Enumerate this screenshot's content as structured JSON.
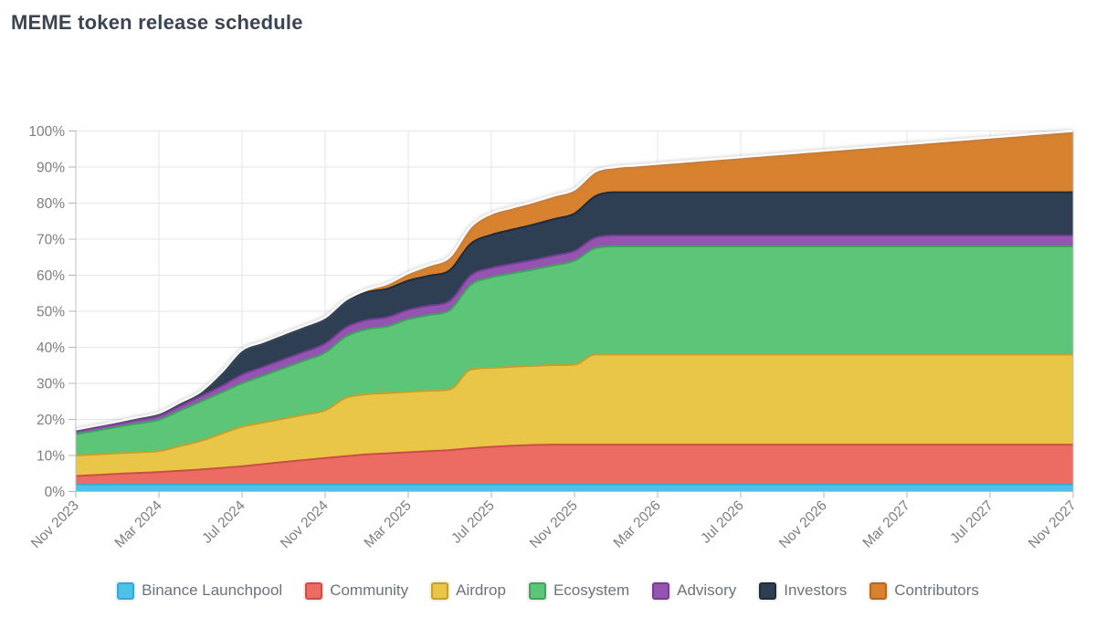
{
  "title": "MEME token release schedule",
  "chart_data": {
    "type": "area",
    "stacked": true,
    "title": "MEME token release schedule",
    "value_unit": "% of total supply unlocked",
    "grid": true,
    "legend_position": "bottom",
    "x_axis": {
      "start": "Nov 2023",
      "end": "Nov 2027",
      "point_interval": "1 month",
      "tick_every_points": 4,
      "tick_labels": [
        "Nov 2023",
        "Mar 2024",
        "Jul 2024",
        "Nov 2024",
        "Mar 2025",
        "Jul 2025",
        "Nov 2025",
        "Mar 2026",
        "Jul 2026",
        "Nov 2026",
        "Mar 2027",
        "Jul 2027",
        "Nov 2027"
      ]
    },
    "y_axis": {
      "min": 0,
      "max": 100,
      "tick_labels": [
        "0%",
        "10%",
        "20%",
        "30%",
        "40%",
        "50%",
        "60%",
        "70%",
        "80%",
        "90%",
        "100%"
      ]
    },
    "series": [
      {
        "name": "Binance Launchpool",
        "color": "#4fc1e9",
        "edge_color": "#36a9d4",
        "values": [
          2,
          2,
          2,
          2,
          2,
          2,
          2,
          2,
          2,
          2,
          2,
          2,
          2,
          2,
          2,
          2,
          2,
          2,
          2,
          2,
          2,
          2,
          2,
          2,
          2,
          2,
          2,
          2,
          2,
          2,
          2,
          2,
          2,
          2,
          2,
          2,
          2,
          2,
          2,
          2,
          2,
          2,
          2,
          2,
          2,
          2,
          2,
          2,
          2
        ]
      },
      {
        "name": "Community",
        "color": "#ec6b63",
        "edge_color": "#c94f47",
        "values": [
          2.3,
          2.6,
          2.9,
          3.15,
          3.4,
          3.75,
          4.1,
          4.55,
          5,
          5.6,
          6.2,
          6.75,
          7.3,
          7.8,
          8.3,
          8.6,
          8.9,
          9.2,
          9.5,
          10,
          10.4,
          10.7,
          10.9,
          11,
          11,
          11,
          11,
          11,
          11,
          11,
          11,
          11,
          11,
          11,
          11,
          11,
          11,
          11,
          11,
          11,
          11,
          11,
          11,
          11,
          11,
          11,
          11,
          11,
          11
        ]
      },
      {
        "name": "Airdrop",
        "color": "#e9c648",
        "edge_color": "#c5a02a",
        "values": [
          5.7,
          5.7,
          5.7,
          5.75,
          5.8,
          6.85,
          7.9,
          9.45,
          11,
          11.5,
          12,
          12.55,
          13.2,
          16.2,
          16.7,
          16.7,
          16.75,
          16.75,
          16.8,
          21.8,
          21.9,
          21.9,
          21.95,
          22.05,
          22.2,
          25,
          25,
          25,
          25,
          25,
          25,
          25,
          25,
          25,
          25,
          25,
          25,
          25,
          25,
          25,
          25,
          25,
          25,
          25,
          25,
          25,
          25,
          25,
          25
        ]
      },
      {
        "name": "Ecosystem",
        "color": "#5cc578",
        "edge_color": "#3fa45e",
        "values": [
          5.9,
          6.6,
          7.3,
          8,
          8.7,
          9.8,
          10.9,
          11.4,
          12,
          13,
          14,
          15,
          16,
          17,
          18,
          18.5,
          20.15,
          21,
          22,
          23.5,
          25.1,
          25.9,
          26.7,
          27.7,
          28.8,
          29.5,
          30,
          30,
          30,
          30,
          30,
          30,
          30,
          30,
          30,
          30,
          30,
          30,
          30,
          30,
          30,
          30,
          30,
          30,
          30,
          30,
          30,
          30,
          30
        ]
      },
      {
        "name": "Advisory",
        "color": "#9355b0",
        "edge_color": "#763e93",
        "values": [
          0.8,
          0.85,
          0.9,
          1,
          1.1,
          1.3,
          1.5,
          1.8,
          2.4,
          2.4,
          2.45,
          2.45,
          2.5,
          2.5,
          2.55,
          2.55,
          2.6,
          2.6,
          2.6,
          2.6,
          2.6,
          2.65,
          2.65,
          2.7,
          2.7,
          2.9,
          3,
          3,
          3,
          3,
          3,
          3,
          3,
          3,
          3,
          3,
          3,
          3,
          3,
          3,
          3,
          3,
          3,
          3,
          3,
          3,
          3,
          3,
          3
        ]
      },
      {
        "name": "Investors",
        "color": "#2e3f53",
        "edge_color": "#1e2b3a",
        "values": [
          0.5,
          0.55,
          0.6,
          0.7,
          0.8,
          1,
          1.3,
          3.8,
          6.9,
          7,
          7.1,
          7.2,
          7.3,
          7.5,
          7.7,
          7.9,
          8.1,
          8.3,
          8.5,
          8.8,
          9.2,
          9.5,
          9.8,
          10.1,
          10.4,
          11.5,
          12,
          12,
          12,
          12,
          12,
          12,
          12,
          12,
          12,
          12,
          12,
          12,
          12,
          12,
          12,
          12,
          12,
          12,
          12,
          12,
          12,
          12,
          12
        ]
      },
      {
        "name": "Contributors",
        "color": "#d8822f",
        "edge_color": "#b5671c",
        "values": [
          0,
          0,
          0,
          0,
          0,
          0,
          0,
          0,
          0,
          0,
          0,
          0,
          0,
          0.2,
          0.7,
          1.4,
          2.1,
          2.9,
          3.7,
          4.7,
          5.9,
          6.1,
          6.3,
          6.5,
          6.7,
          6.9,
          7,
          7.45,
          7.91,
          8.36,
          8.82,
          9.27,
          9.73,
          10.18,
          10.64,
          11.09,
          11.55,
          12,
          12.45,
          12.91,
          13.36,
          13.82,
          14.27,
          14.73,
          15.18,
          15.64,
          16.09,
          16.55,
          17
        ]
      }
    ],
    "colors": {
      "grid": "#e6e6e6",
      "axis_border": "#bfbfbf",
      "tick": "#b5b5b5",
      "tick_label": "#7e7e7e",
      "title_text": "#3b4551",
      "legend_text": "#6a737d",
      "top_edge_line": "#ffffff",
      "top_edge_shadow": "#666666"
    }
  }
}
